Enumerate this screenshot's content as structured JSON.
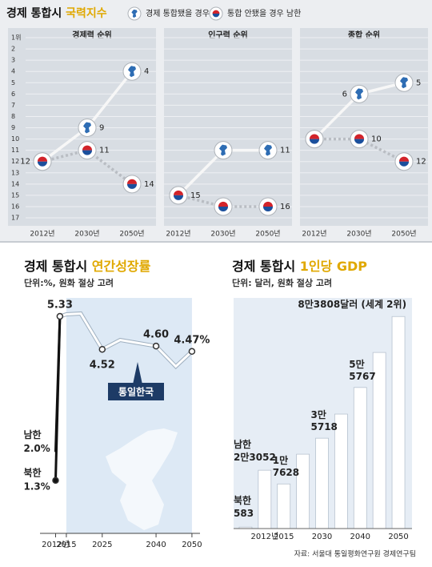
{
  "header": {
    "title": "경제 통합시",
    "title_highlight": "국력지수",
    "legend": [
      "경제 통합됐을 경우",
      "통합 안됐을 경우 남한"
    ]
  },
  "chart_data": [
    {
      "type": "rank",
      "title": "경제력 순위",
      "categories": [
        "2012년",
        "2030년",
        "2050년"
      ],
      "ylim": [
        1,
        17
      ],
      "reverse_y": true,
      "tick_labels": true,
      "yticks": [
        {
          "value": 1,
          "label": "1위"
        },
        2,
        3,
        4,
        5,
        6,
        7,
        8,
        9,
        10,
        11,
        12,
        13,
        14,
        15,
        16,
        17
      ],
      "series": [
        {
          "marker": "unified",
          "line_style": "solid",
          "color": "#f7f7f7",
          "values": [
            12,
            9,
            4
          ],
          "value_labels": [
            "12",
            "9",
            "4"
          ]
        },
        {
          "marker": "south",
          "line_style": "dotted",
          "color": "#b9bdc3",
          "values": [
            12,
            11,
            14
          ],
          "value_labels": [
            null,
            "11",
            "14"
          ]
        }
      ]
    },
    {
      "type": "rank",
      "title": "인구력 순위",
      "categories": [
        "2012년",
        "2030년",
        "2050년"
      ],
      "ylim": [
        1,
        17
      ],
      "reverse_y": true,
      "tick_labels": false,
      "yticks": [
        1,
        2,
        3,
        4,
        5,
        6,
        7,
        8,
        9,
        10,
        11,
        12,
        13,
        14,
        15,
        16,
        17
      ],
      "series": [
        {
          "marker": "unified",
          "line_style": "solid",
          "color": "#f7f7f7",
          "values": [
            15,
            11,
            11
          ],
          "value_labels": [
            "15",
            null,
            "11"
          ]
        },
        {
          "marker": "south",
          "line_style": "dotted",
          "color": "#b9bdc3",
          "values": [
            15,
            16,
            16
          ],
          "value_labels": [
            null,
            null,
            "16"
          ]
        }
      ]
    },
    {
      "type": "rank",
      "title": "종합 순위",
      "categories": [
        "2012년",
        "2030년",
        "2050년"
      ],
      "ylim": [
        1,
        17
      ],
      "reverse_y": true,
      "tick_labels": false,
      "yticks": [
        1,
        2,
        3,
        4,
        5,
        6,
        7,
        8,
        9,
        10,
        11,
        12,
        13,
        14,
        15,
        16,
        17
      ],
      "series": [
        {
          "marker": "unified",
          "line_style": "solid",
          "color": "#f7f7f7",
          "values": [
            10,
            6,
            5
          ],
          "value_labels": [
            null,
            "6",
            "5"
          ]
        },
        {
          "marker": "south",
          "line_style": "dotted",
          "color": "#b9bdc3",
          "values": [
            10,
            10,
            12
          ],
          "value_labels": [
            null,
            "10",
            "12"
          ]
        }
      ]
    },
    {
      "type": "line",
      "title": "경제 통합시",
      "title_highlight": "연간성장률",
      "subtitle": "단위:%, 원화 절상 고려",
      "xlim": [
        2011,
        2051
      ],
      "xticks": [
        {
          "value": 2012,
          "label": "2012년"
        },
        2015,
        2025,
        2040,
        2050
      ],
      "ylim": [
        0,
        6
      ],
      "shade_x": [
        2015,
        2050
      ],
      "shade_color": "#dde9f5",
      "series": [
        {
          "name": "남한",
          "color": "#111111",
          "x": [
            2012,
            2013.2
          ],
          "values": [
            2.0,
            5.33
          ],
          "value_labels": [
            "2.0%",
            null
          ]
        },
        {
          "name": "북한",
          "color": "#111111",
          "x": [
            2012,
            2013.2
          ],
          "values": [
            1.3,
            5.33
          ],
          "value_labels": [
            "1.3%",
            null
          ]
        },
        {
          "name": "통일한국",
          "color": "#ffffff",
          "x": [
            2013.2,
            2015,
            2019,
            2025,
            2030,
            2040,
            2045.5,
            2050
          ],
          "values": [
            5.33,
            5.38,
            5.4,
            4.52,
            4.75,
            4.6,
            4.1,
            4.47
          ],
          "value_labels": [
            "5.33",
            null,
            null,
            "4.52",
            null,
            "4.60",
            null,
            "4.47%"
          ]
        }
      ]
    },
    {
      "type": "bar",
      "title": "경제 통합시",
      "title_highlight": "1인당 GDP",
      "subtitle": "단위: 달러, 원화 절상 고려",
      "categories": [
        null,
        "2012년",
        "2015",
        null,
        "2030",
        null,
        "2040",
        null,
        "2050"
      ],
      "bar_labels": [
        "북한",
        "남한",
        null,
        null,
        null,
        null,
        null,
        null,
        null
      ],
      "values": [
        583,
        23052,
        17628,
        29400,
        35718,
        45250,
        55767,
        69600,
        83808
      ],
      "value_labels": [
        "583",
        "2만3052",
        "1만\n7628",
        null,
        "3만\n5718",
        null,
        "5만\n5767",
        null,
        "8만3808달러 (세계 2위)"
      ],
      "color": "#ffffff",
      "ylim": [
        0,
        88000
      ]
    }
  ],
  "source": "자료: 서울대 통일평화연구원 경제연구팀"
}
